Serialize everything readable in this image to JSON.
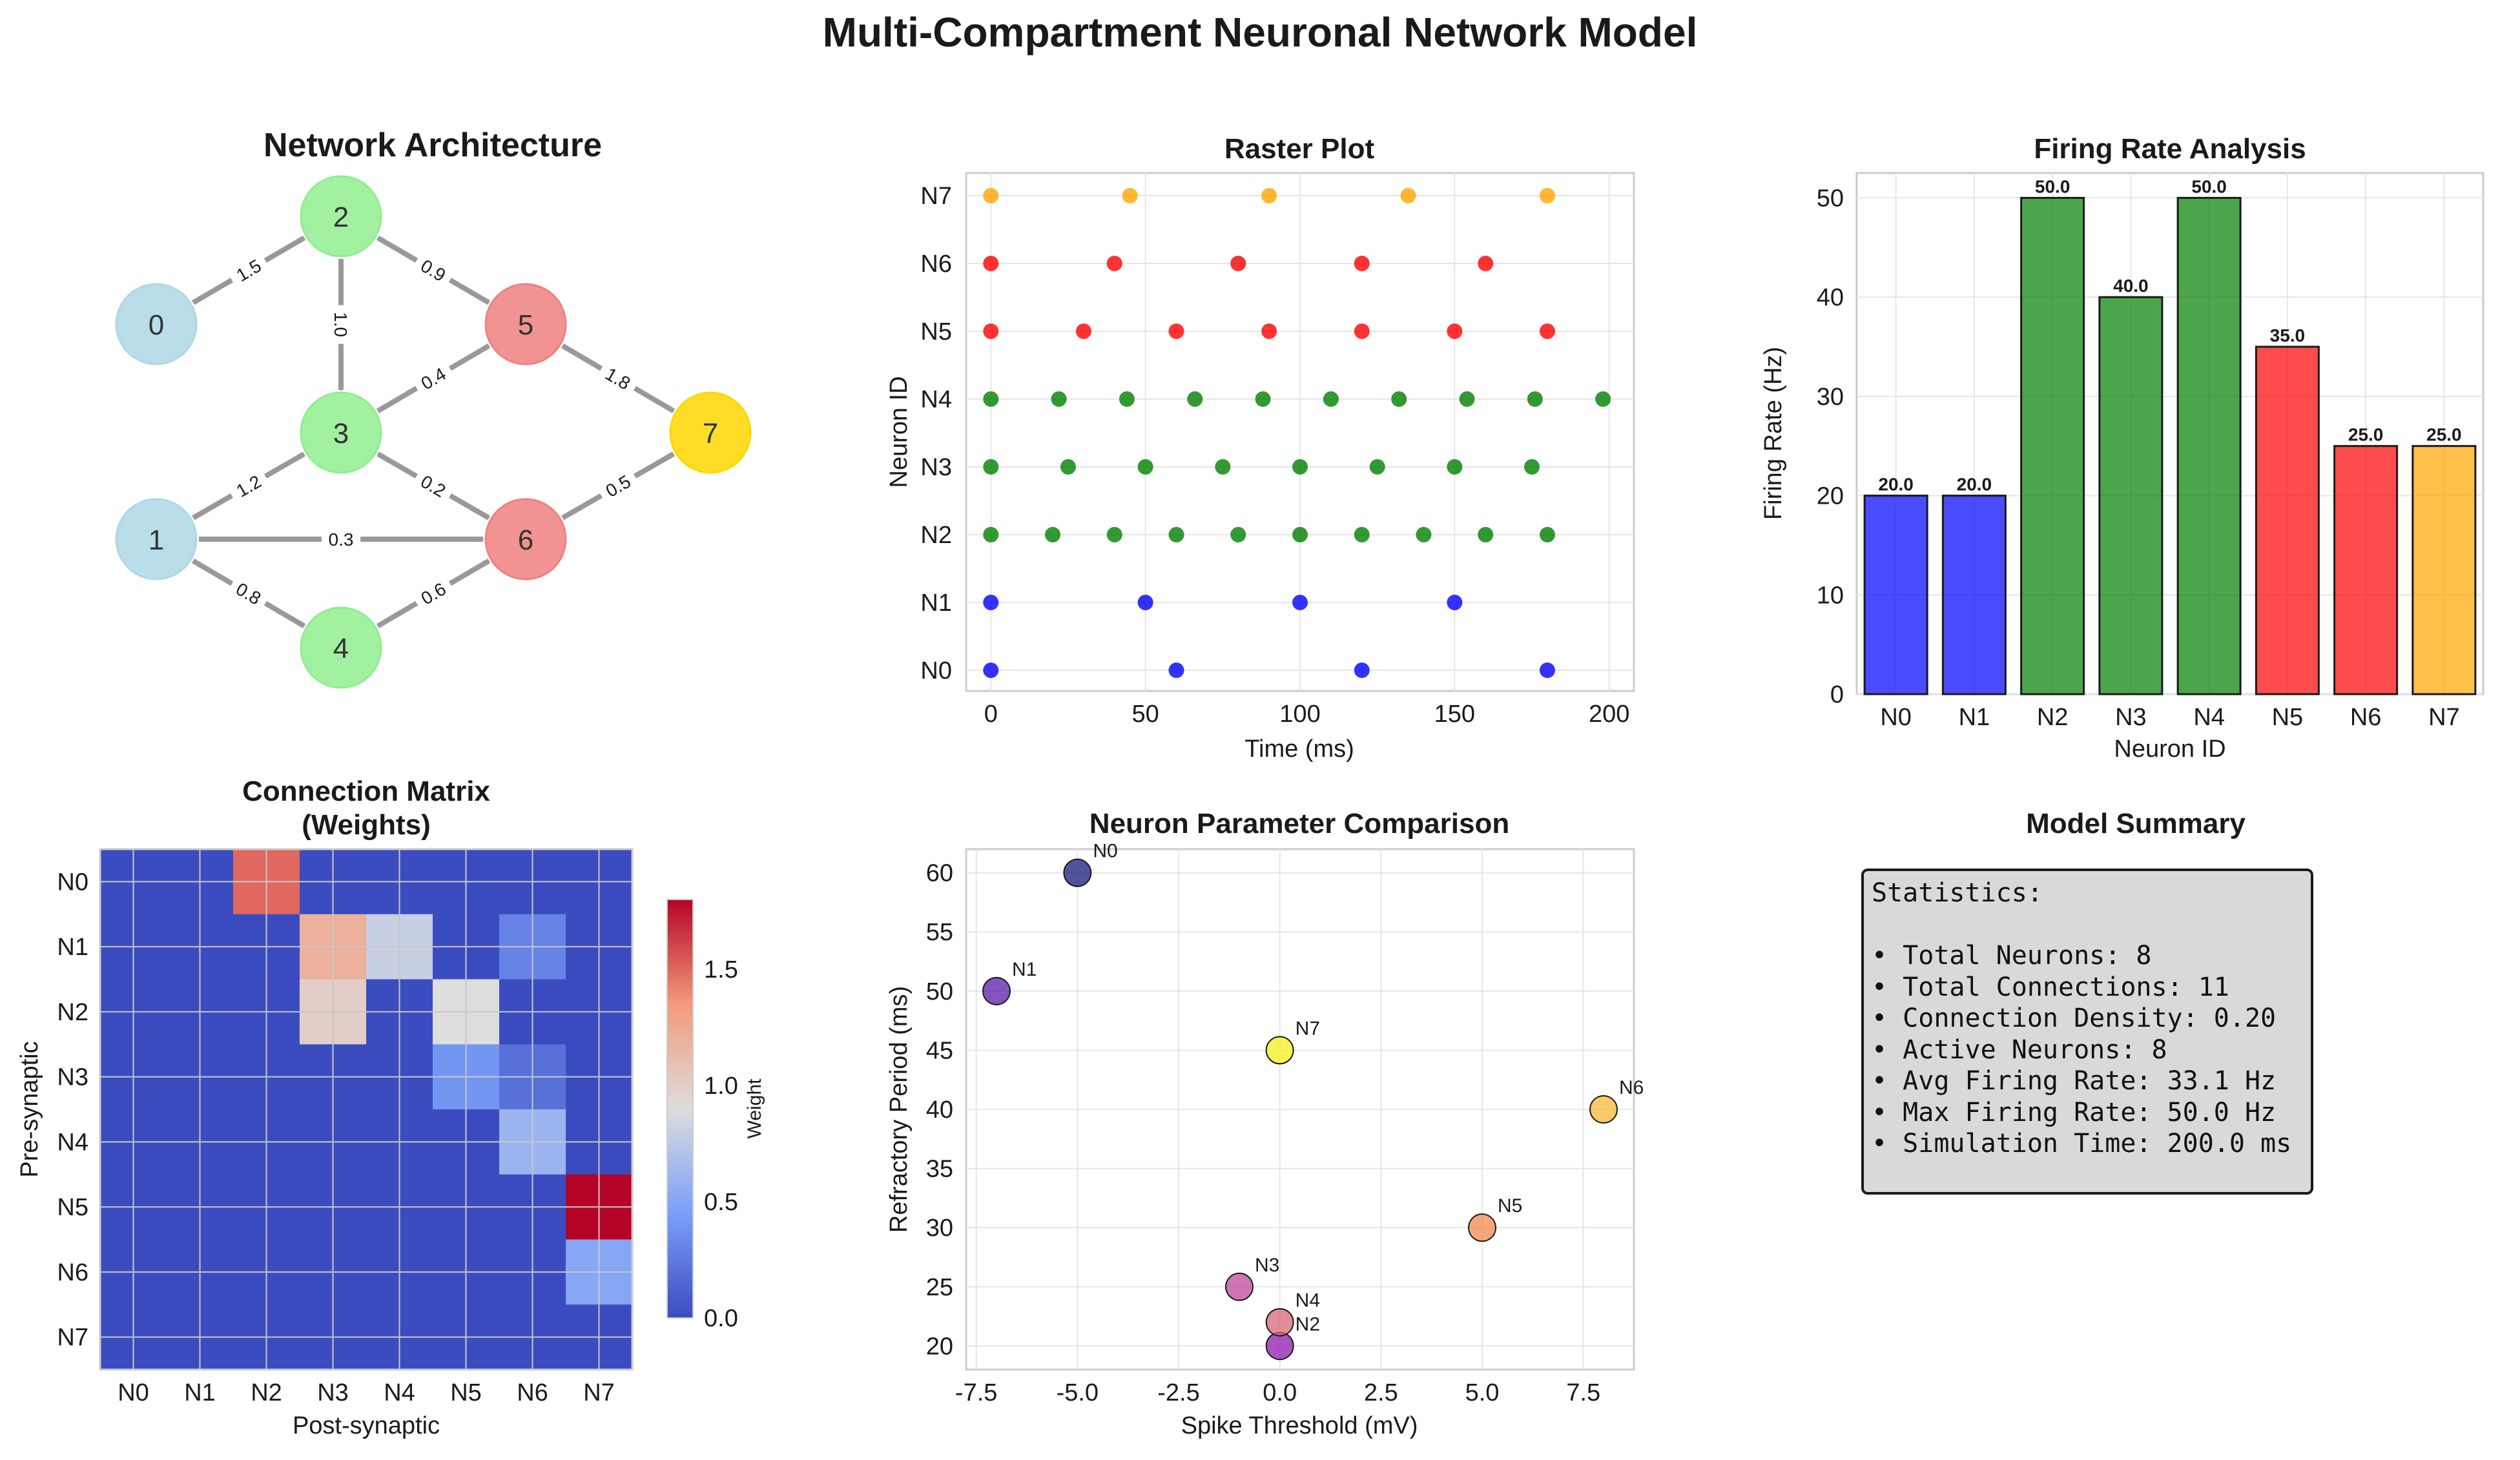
{
  "figure_title": "Multi-Compartment Neuronal Network Model",
  "network": {
    "title": "Network Architecture",
    "nodes": [
      {
        "label": "0",
        "color": "#add8e6"
      },
      {
        "label": "1",
        "color": "#add8e6"
      },
      {
        "label": "2",
        "color": "#90ee90"
      },
      {
        "label": "3",
        "color": "#90ee90"
      },
      {
        "label": "4",
        "color": "#90ee90"
      },
      {
        "label": "5",
        "color": "#f08080"
      },
      {
        "label": "6",
        "color": "#f08080"
      },
      {
        "label": "7",
        "color": "#ffd700"
      }
    ],
    "edges": [
      {
        "from": 0,
        "to": 2,
        "weight": "1.5"
      },
      {
        "from": 1,
        "to": 3,
        "weight": "1.2"
      },
      {
        "from": 1,
        "to": 6,
        "weight": "0.3"
      },
      {
        "from": 1,
        "to": 4,
        "weight": "0.8"
      },
      {
        "from": 2,
        "to": 3,
        "weight": "1.0"
      },
      {
        "from": 2,
        "to": 5,
        "weight": "0.9"
      },
      {
        "from": 3,
        "to": 5,
        "weight": "0.4"
      },
      {
        "from": 3,
        "to": 6,
        "weight": "0.2"
      },
      {
        "from": 4,
        "to": 6,
        "weight": "0.6"
      },
      {
        "from": 5,
        "to": 7,
        "weight": "1.8"
      },
      {
        "from": 6,
        "to": 7,
        "weight": "0.5"
      }
    ]
  },
  "chart_data": [
    {
      "type": "scatter",
      "title": "Raster Plot",
      "xlabel": "Time (ms)",
      "ylabel": "Neuron ID",
      "xlim": [
        -8,
        208
      ],
      "xticks": [
        0,
        50,
        100,
        150,
        200
      ],
      "yticks": [
        "N0",
        "N1",
        "N2",
        "N3",
        "N4",
        "N5",
        "N6",
        "N7"
      ],
      "series": [
        {
          "name": "N0",
          "color": "#0000ff",
          "x": [
            0,
            60,
            120,
            180
          ]
        },
        {
          "name": "N1",
          "color": "#0000ff",
          "x": [
            0,
            50,
            100,
            150
          ]
        },
        {
          "name": "N2",
          "color": "#008000",
          "x": [
            0,
            20,
            40,
            60,
            80,
            100,
            120,
            140,
            160,
            180
          ]
        },
        {
          "name": "N3",
          "color": "#008000",
          "x": [
            0,
            25,
            50,
            75,
            100,
            125,
            150,
            175
          ]
        },
        {
          "name": "N4",
          "color": "#008000",
          "x": [
            0,
            22,
            44,
            66,
            88,
            110,
            132,
            154,
            176,
            198
          ]
        },
        {
          "name": "N5",
          "color": "#ff0000",
          "x": [
            0,
            30,
            60,
            90,
            120,
            150,
            180
          ]
        },
        {
          "name": "N6",
          "color": "#ff0000",
          "x": [
            0,
            40,
            80,
            120,
            160
          ]
        },
        {
          "name": "N7",
          "color": "#ffa500",
          "x": [
            0,
            45,
            90,
            135,
            180
          ]
        }
      ]
    },
    {
      "type": "bar",
      "title": "Firing Rate Analysis",
      "xlabel": "Neuron ID",
      "ylabel": "Firing Rate (Hz)",
      "ylim": [
        0,
        52.5
      ],
      "yticks": [
        0,
        10,
        20,
        30,
        40,
        50
      ],
      "categories": [
        "N0",
        "N1",
        "N2",
        "N3",
        "N4",
        "N5",
        "N6",
        "N7"
      ],
      "values": [
        20.0,
        20.0,
        50.0,
        40.0,
        50.0,
        35.0,
        25.0,
        25.0
      ],
      "value_labels": [
        "20.0",
        "20.0",
        "50.0",
        "40.0",
        "50.0",
        "35.0",
        "25.0",
        "25.0"
      ],
      "colors": [
        "#0000ff",
        "#0000ff",
        "#008000",
        "#008000",
        "#008000",
        "#ff0000",
        "#ff0000",
        "#ffa500"
      ]
    },
    {
      "type": "heatmap",
      "title_lines": [
        "Connection Matrix",
        "(Weights)"
      ],
      "xlabel": "Post-synaptic",
      "ylabel": "Pre-synaptic",
      "row_labels": [
        "N0",
        "N1",
        "N2",
        "N3",
        "N4",
        "N5",
        "N6",
        "N7"
      ],
      "col_labels": [
        "N0",
        "N1",
        "N2",
        "N3",
        "N4",
        "N5",
        "N6",
        "N7"
      ],
      "matrix": [
        [
          0,
          0,
          1.5,
          0,
          0,
          0,
          0,
          0
        ],
        [
          0,
          0,
          0,
          1.2,
          0.8,
          0,
          0.3,
          0
        ],
        [
          0,
          0,
          0,
          1.0,
          0,
          0.9,
          0,
          0
        ],
        [
          0,
          0,
          0,
          0,
          0,
          0.4,
          0.2,
          0
        ],
        [
          0,
          0,
          0,
          0,
          0,
          0,
          0.6,
          0
        ],
        [
          0,
          0,
          0,
          0,
          0,
          0,
          0,
          1.8
        ],
        [
          0,
          0,
          0,
          0,
          0,
          0,
          0,
          0.5
        ],
        [
          0,
          0,
          0,
          0,
          0,
          0,
          0,
          0
        ]
      ],
      "colorbar_label": "Weight",
      "colorbar_range": [
        0,
        1.8
      ],
      "colorbar_ticks": [
        "0.0",
        "0.5",
        "1.0",
        "1.5"
      ]
    },
    {
      "type": "scatter",
      "title": "Neuron Parameter Comparison",
      "xlabel": "Spike Threshold (mV)",
      "ylabel": "Refractory Period (ms)",
      "xlim": [
        -7.75,
        8.75
      ],
      "ylim": [
        18,
        62
      ],
      "xticks": [
        "-7.5",
        "-5.0",
        "-2.5",
        "0.0",
        "2.5",
        "5.0",
        "7.5"
      ],
      "yticks": [
        "20",
        "25",
        "30",
        "35",
        "40",
        "45",
        "50",
        "55",
        "60"
      ],
      "points": [
        {
          "label": "N0",
          "x": -5,
          "y": 60,
          "color": "#1a1a7a"
        },
        {
          "label": "N1",
          "x": -7,
          "y": 50,
          "color": "#5b1aa8"
        },
        {
          "label": "N2",
          "x": 0,
          "y": 20,
          "color": "#8f1ab0"
        },
        {
          "label": "N3",
          "x": -1,
          "y": 25,
          "color": "#c0479b"
        },
        {
          "label": "N4",
          "x": 0,
          "y": 22,
          "color": "#d86577"
        },
        {
          "label": "N5",
          "x": 5,
          "y": 30,
          "color": "#f08a4b"
        },
        {
          "label": "N6",
          "x": 8,
          "y": 40,
          "color": "#f5b836"
        },
        {
          "label": "N7",
          "x": 0,
          "y": 45,
          "color": "#f3f11c"
        }
      ]
    }
  ],
  "summary": {
    "title": "Model Summary",
    "lines": [
      "Statistics:",
      "",
      "• Total Neurons: 8",
      "• Total Connections: 11",
      "• Connection Density: 0.20",
      "• Active Neurons: 8",
      "• Avg Firing Rate: 33.1 Hz",
      "• Max Firing Rate: 50.0 Hz",
      "• Simulation Time: 200.0 ms"
    ]
  }
}
